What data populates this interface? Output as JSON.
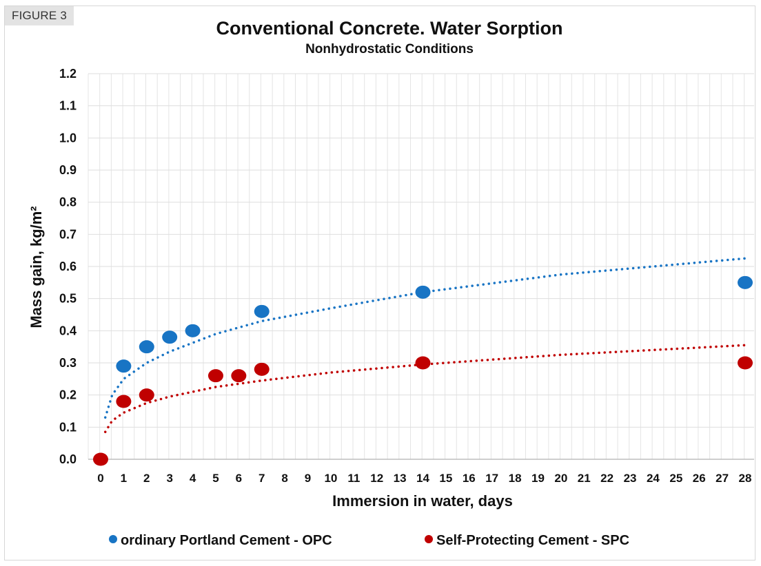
{
  "figure_tag": "FIGURE 3",
  "chart_data": {
    "type": "scatter",
    "title": "Conventional Concrete. Water Sorption",
    "subtitle": "Nonhydrostatic Conditions",
    "xlabel": "Immersion in water, days",
    "ylabel": "Mass gain, kg/m²",
    "xlim": [
      0,
      28
    ],
    "ylim": [
      0,
      1.2
    ],
    "x_ticks": [
      0,
      1,
      2,
      3,
      4,
      5,
      6,
      7,
      8,
      9,
      10,
      11,
      12,
      13,
      14,
      15,
      16,
      17,
      18,
      19,
      20,
      21,
      22,
      23,
      24,
      25,
      26,
      27,
      28
    ],
    "y_ticks": [
      "0.0",
      "0.1",
      "0.2",
      "0.3",
      "0.4",
      "0.5",
      "0.6",
      "0.7",
      "0.8",
      "0.9",
      "1.0",
      "1.1",
      "1.2"
    ],
    "grid": true,
    "legend_position": "bottom",
    "series": [
      {
        "name": "ordinary Portland Cement - OPC",
        "color": "#1874c4",
        "x": [
          1,
          2,
          3,
          4,
          7,
          14,
          28
        ],
        "y": [
          0.29,
          0.35,
          0.38,
          0.4,
          0.46,
          0.52,
          0.55
        ],
        "trendline": {
          "type": "logarithmic",
          "style": "dotted",
          "x": [
            0.2,
            0.5,
            1,
            2,
            3,
            5,
            7,
            10,
            14,
            20,
            28
          ],
          "y": [
            0.13,
            0.2,
            0.25,
            0.3,
            0.335,
            0.39,
            0.43,
            0.47,
            0.52,
            0.575,
            0.625
          ]
        }
      },
      {
        "name": "Self-Protecting Cement - SPC",
        "color": "#c00000",
        "x": [
          0,
          1,
          2,
          5,
          6,
          7,
          14,
          28
        ],
        "y": [
          0.0,
          0.18,
          0.2,
          0.26,
          0.26,
          0.28,
          0.3,
          0.3
        ],
        "trendline": {
          "type": "logarithmic",
          "style": "dotted",
          "x": [
            0.2,
            0.5,
            1,
            2,
            3,
            5,
            7,
            10,
            14,
            20,
            28
          ],
          "y": [
            0.085,
            0.12,
            0.145,
            0.175,
            0.195,
            0.225,
            0.245,
            0.27,
            0.295,
            0.325,
            0.355
          ]
        }
      }
    ]
  }
}
